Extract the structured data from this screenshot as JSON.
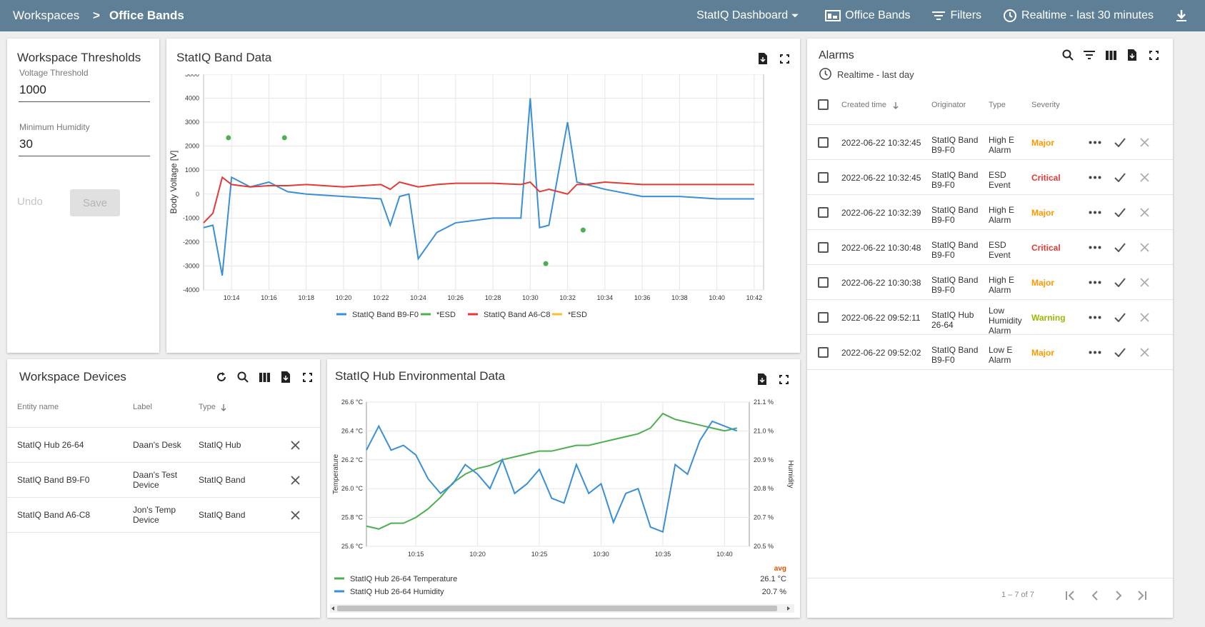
{
  "breadcrumb": {
    "root": "Workspaces",
    "separator": ">",
    "current": "Office Bands"
  },
  "toolbar": {
    "dashboard": "StatIQ Dashboard",
    "state": "Office Bands",
    "filters": "Filters",
    "timewindow": "Realtime - last 30 minutes"
  },
  "thresholds": {
    "title": "Workspace Thresholds",
    "voltage_label": "Voltage Threshold",
    "voltage_value": "1000",
    "humidity_label": "Minimum Humidity",
    "humidity_value": "30",
    "undo": "Undo",
    "save": "Save"
  },
  "band_chart": {
    "title": "StatIQ Band Data",
    "ylabel": "Body Voltage [V]",
    "yticks": [
      "5000",
      "4000",
      "3000",
      "2000",
      "1000",
      "0",
      "-1000",
      "-2000",
      "-3000",
      "-4000"
    ],
    "xticks": [
      "10:14",
      "10:16",
      "10:18",
      "10:20",
      "10:22",
      "10:24",
      "10:26",
      "10:28",
      "10:30",
      "10:32",
      "10:34",
      "10:36",
      "10:38",
      "10:40",
      "10:42"
    ],
    "legend": [
      "StatIQ Band B9-F0",
      "*ESD",
      "StatIQ Band A6-C8",
      "*ESD"
    ]
  },
  "devices": {
    "title": "Workspace Devices",
    "headers": [
      "Entity name",
      "Label",
      "Type"
    ],
    "rows": [
      {
        "name": "StatIQ Hub 26-64",
        "label": "Daan's Desk",
        "type": "StatIQ Hub"
      },
      {
        "name": "StatIQ Band B9-F0",
        "label": "Daan's Test Device",
        "type": "StatIQ Band"
      },
      {
        "name": "StatIQ Band A6-C8",
        "label": "Jon's Temp Device",
        "type": "StatIQ Band"
      }
    ]
  },
  "env_chart": {
    "title": "StatIQ Hub Environmental Data",
    "ylabel_left": "Temperature",
    "ylabel_right": "Humidity",
    "yticks_left": [
      "26.6 °C",
      "26.4 °C",
      "26.2 °C",
      "26.0 °C",
      "25.8 °C",
      "25.6 °C"
    ],
    "yticks_right": [
      "21.1 %",
      "21.0 %",
      "20.9 %",
      "20.8 %",
      "20.7 %",
      "20.5 %"
    ],
    "xticks": [
      "10:15",
      "10:20",
      "10:25",
      "10:30",
      "10:35",
      "10:40"
    ],
    "avg_label": "avg",
    "legend": [
      {
        "name": "StatIQ Hub 26-64 Temperature",
        "avg": "26.1 °C"
      },
      {
        "name": "StatIQ Hub 26-64 Humidity",
        "avg": "20.7 %"
      }
    ]
  },
  "alarms": {
    "title": "Alarms",
    "subtitle": "Realtime - last day",
    "headers": [
      "Created time",
      "Originator",
      "Type",
      "Severity"
    ],
    "rows": [
      {
        "time": "2022-06-22 10:32:45",
        "originator": "StatIQ Band B9-F0",
        "type": "High E Alarm",
        "severity": "Major"
      },
      {
        "time": "2022-06-22 10:32:45",
        "originator": "StatIQ Band B9-F0",
        "type": "ESD Event",
        "severity": "Critical"
      },
      {
        "time": "2022-06-22 10:32:39",
        "originator": "StatIQ Band B9-F0",
        "type": "High E Alarm",
        "severity": "Major"
      },
      {
        "time": "2022-06-22 10:30:48",
        "originator": "StatIQ Band B9-F0",
        "type": "ESD Event",
        "severity": "Critical"
      },
      {
        "time": "2022-06-22 10:30:38",
        "originator": "StatIQ Band B9-F0",
        "type": "High E Alarm",
        "severity": "Major"
      },
      {
        "time": "2022-06-22 09:52:11",
        "originator": "StatIQ Hub 26-64",
        "type": "Low Humidity Alarm",
        "severity": "Warning"
      },
      {
        "time": "2022-06-22 09:52:02",
        "originator": "StatIQ Band B9-F0",
        "type": "Low E Alarm",
        "severity": "Major"
      }
    ],
    "pagination": "1 – 7 of 7"
  },
  "colors": {
    "topbar": "#5e7f95",
    "series_blue": "#3a8fd6",
    "series_green": "#4caf50",
    "series_red": "#e53935",
    "series_yellow": "#fbc02d",
    "major": "#ff9800",
    "critical": "#e53935",
    "warning": "#9cb800"
  },
  "chart_data": [
    {
      "type": "line",
      "title": "StatIQ Band Data",
      "ylabel": "Body Voltage [V]",
      "ylim": [
        -4000,
        5000
      ],
      "x": [
        "10:12:30",
        "10:13:00",
        "10:13:30",
        "10:14:00",
        "10:15:00",
        "10:16:00",
        "10:17:00",
        "10:18:00",
        "10:20:00",
        "10:22:00",
        "10:22:30",
        "10:23:00",
        "10:23:30",
        "10:24:00",
        "10:25:00",
        "10:26:00",
        "10:28:00",
        "10:29:30",
        "10:30:00",
        "10:30:30",
        "10:31:00",
        "10:32:00",
        "10:32:30",
        "10:33:00",
        "10:34:00",
        "10:36:00",
        "10:38:00",
        "10:40:00",
        "10:42:00"
      ],
      "series": [
        {
          "name": "StatIQ Band B9-F0",
          "values": [
            -1400,
            -1300,
            -3400,
            700,
            300,
            500,
            100,
            0,
            -100,
            -200,
            -1300,
            -100,
            0,
            -2700,
            -1600,
            -1200,
            -1000,
            -1000,
            4000,
            -1400,
            -1300,
            3000,
            500,
            400,
            200,
            -100,
            -100,
            -200,
            -200
          ]
        },
        {
          "name": "StatIQ Band A6-C8",
          "values": [
            -1200,
            -800,
            700,
            400,
            300,
            350,
            350,
            400,
            300,
            400,
            200,
            500,
            400,
            300,
            400,
            450,
            450,
            400,
            500,
            100,
            200,
            0,
            400,
            400,
            500,
            400,
            400,
            400,
            400
          ]
        }
      ],
      "esd_points": [
        {
          "x": "10:13:50",
          "y": 2350
        },
        {
          "x": "10:16:50",
          "y": 2350
        },
        {
          "x": "10:30:50",
          "y": -2900
        },
        {
          "x": "10:32:50",
          "y": -1500
        }
      ]
    },
    {
      "type": "line",
      "title": "StatIQ Hub Environmental Data",
      "ylabel": "Temperature",
      "y2label": "Humidity",
      "x": [
        "10:11",
        "10:12",
        "10:13",
        "10:14",
        "10:15",
        "10:16",
        "10:17",
        "10:18",
        "10:19",
        "10:20",
        "10:21",
        "10:22",
        "10:23",
        "10:24",
        "10:25",
        "10:26",
        "10:27",
        "10:28",
        "10:29",
        "10:30",
        "10:31",
        "10:32",
        "10:33",
        "10:34",
        "10:35",
        "10:36",
        "10:37",
        "10:38",
        "10:39",
        "10:40",
        "10:41"
      ],
      "series": [
        {
          "name": "StatIQ Hub 26-64 Temperature",
          "values": [
            25.74,
            25.72,
            25.76,
            25.76,
            25.8,
            25.86,
            25.94,
            26.04,
            26.1,
            26.14,
            26.16,
            26.2,
            26.22,
            26.24,
            26.26,
            26.26,
            26.28,
            26.3,
            26.3,
            26.32,
            26.34,
            26.36,
            26.38,
            26.42,
            26.52,
            26.48,
            26.46,
            26.44,
            26.42,
            26.4,
            26.42
          ]
        },
        {
          "name": "StatIQ Hub 26-64 Humidity",
          "values": [
            20.9,
            21.0,
            20.9,
            20.92,
            20.88,
            20.78,
            20.72,
            20.76,
            20.84,
            20.8,
            20.74,
            20.86,
            20.72,
            20.76,
            20.82,
            20.7,
            20.68,
            20.84,
            20.72,
            20.76,
            20.6,
            20.72,
            20.74,
            20.58,
            20.56,
            20.84,
            20.8,
            20.94,
            21.02,
            21.0,
            20.98
          ]
        }
      ]
    }
  ]
}
